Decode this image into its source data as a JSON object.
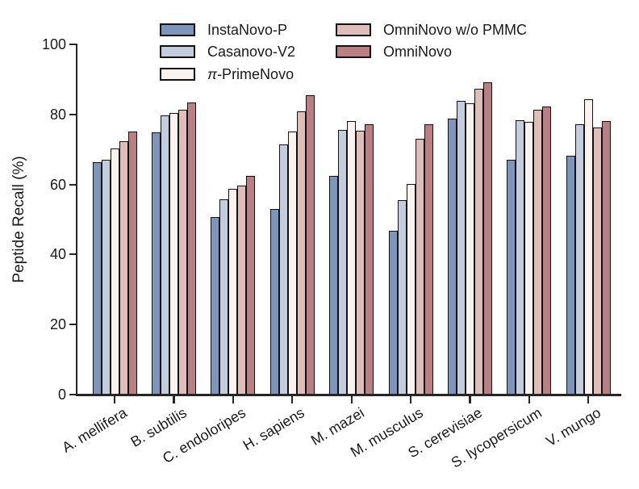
{
  "chart_data": {
    "type": "bar",
    "title": "",
    "xlabel": "",
    "ylabel": "Peptide Recall (%)",
    "ylim": [
      0,
      100
    ],
    "yticks": [
      0,
      20,
      40,
      60,
      80,
      100
    ],
    "grid": false,
    "legend_position": "top",
    "bar_border_color": "#111111",
    "axis_color": "#262626",
    "categories": [
      "A. mellifera",
      "B. subtilis",
      "C. endoloripes",
      "H. sapiens",
      "M. mazei",
      "M. musculus",
      "S. cerevisiae",
      "S. lycopersicum",
      "V. mungo"
    ],
    "series": [
      {
        "name": "InstaNovo-P",
        "color": "#7e95bb",
        "values": [
          66.3,
          75.0,
          50.7,
          53.0,
          62.5,
          46.8,
          78.9,
          67.1,
          68.1
        ]
      },
      {
        "name": "Casanovo-V2",
        "color": "#c4cdde",
        "values": [
          67.0,
          79.8,
          55.8,
          71.4,
          75.6,
          55.5,
          83.9,
          78.3,
          77.1
        ]
      },
      {
        "name": "π-PrimeNovo",
        "color": "#f9f2ef",
        "values": [
          70.3,
          80.3,
          58.7,
          75.2,
          78.1,
          60.1,
          83.2,
          77.9,
          84.3
        ]
      },
      {
        "name": "OmniNovo w/o PMMC",
        "color": "#dfbeba",
        "values": [
          72.3,
          81.4,
          59.7,
          80.8,
          75.4,
          73.0,
          87.3,
          81.3,
          76.3
        ]
      },
      {
        "name": "OmniNovo",
        "color": "#b98083",
        "values": [
          75.2,
          83.3,
          62.4,
          85.4,
          77.2,
          77.1,
          89.2,
          82.3,
          78.1
        ]
      }
    ]
  }
}
